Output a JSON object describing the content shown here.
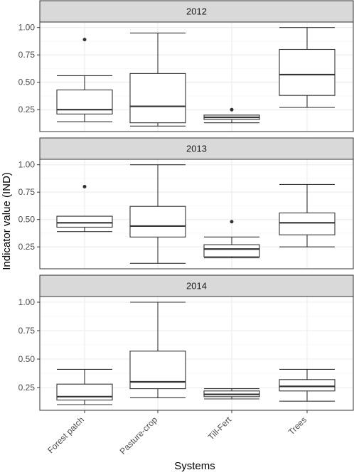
{
  "chart_data": {
    "type": "boxplot",
    "xlabel": "Systems",
    "ylabel": "Indicator value (IND)",
    "categories": [
      "Forest patch",
      "Pasture-crop",
      "Till-Fert",
      "Trees"
    ],
    "ylim": [
      0.05,
      1.05
    ],
    "yticks": [
      0.25,
      0.5,
      0.75,
      1.0
    ],
    "ytick_labels": [
      "0.25",
      "0.50",
      "0.75",
      "1.00"
    ],
    "grid": true,
    "panels": [
      {
        "label": "2012",
        "boxes": [
          {
            "category": "Forest patch",
            "whisker_low": 0.14,
            "q1": 0.21,
            "median": 0.25,
            "q3": 0.43,
            "whisker_high": 0.56,
            "outliers": [
              0.89
            ]
          },
          {
            "category": "Pasture-crop",
            "whisker_low": 0.1,
            "q1": 0.13,
            "median": 0.28,
            "q3": 0.58,
            "whisker_high": 0.95,
            "outliers": []
          },
          {
            "category": "Till-Fert",
            "whisker_low": 0.13,
            "q1": 0.16,
            "median": 0.18,
            "q3": 0.2,
            "whisker_high": 0.2,
            "outliers": [
              0.25
            ]
          },
          {
            "category": "Trees",
            "whisker_low": 0.27,
            "q1": 0.38,
            "median": 0.57,
            "q3": 0.8,
            "whisker_high": 1.0,
            "outliers": []
          }
        ]
      },
      {
        "label": "2013",
        "boxes": [
          {
            "category": "Forest patch",
            "whisker_low": 0.39,
            "q1": 0.43,
            "median": 0.47,
            "q3": 0.53,
            "whisker_high": 0.53,
            "outliers": [
              0.8
            ]
          },
          {
            "category": "Pasture-crop",
            "whisker_low": 0.1,
            "q1": 0.34,
            "median": 0.44,
            "q3": 0.62,
            "whisker_high": 1.0,
            "outliers": []
          },
          {
            "category": "Till-Fert",
            "whisker_low": 0.15,
            "q1": 0.16,
            "median": 0.23,
            "q3": 0.27,
            "whisker_high": 0.34,
            "outliers": [
              0.48
            ]
          },
          {
            "category": "Trees",
            "whisker_low": 0.25,
            "q1": 0.36,
            "median": 0.47,
            "q3": 0.56,
            "whisker_high": 0.82,
            "outliers": []
          }
        ]
      },
      {
        "label": "2014",
        "boxes": [
          {
            "category": "Forest patch",
            "whisker_low": 0.1,
            "q1": 0.14,
            "median": 0.17,
            "q3": 0.28,
            "whisker_high": 0.41,
            "outliers": []
          },
          {
            "category": "Pasture-crop",
            "whisker_low": 0.16,
            "q1": 0.24,
            "median": 0.3,
            "q3": 0.57,
            "whisker_high": 1.0,
            "outliers": []
          },
          {
            "category": "Till-Fert",
            "whisker_low": 0.15,
            "q1": 0.17,
            "median": 0.19,
            "q3": 0.22,
            "whisker_high": 0.24,
            "outliers": []
          },
          {
            "category": "Trees",
            "whisker_low": 0.13,
            "q1": 0.22,
            "median": 0.26,
            "q3": 0.32,
            "whisker_high": 0.41,
            "outliers": []
          }
        ]
      }
    ],
    "colors": {
      "strip_fill": "#d9d9d9",
      "panel_border": "#333333",
      "grid_major": "#ebebeb",
      "grid_minor": "#f5f5f5",
      "box_line": "#333333",
      "box_fill": "#ffffff",
      "outlier": "#333333"
    }
  }
}
